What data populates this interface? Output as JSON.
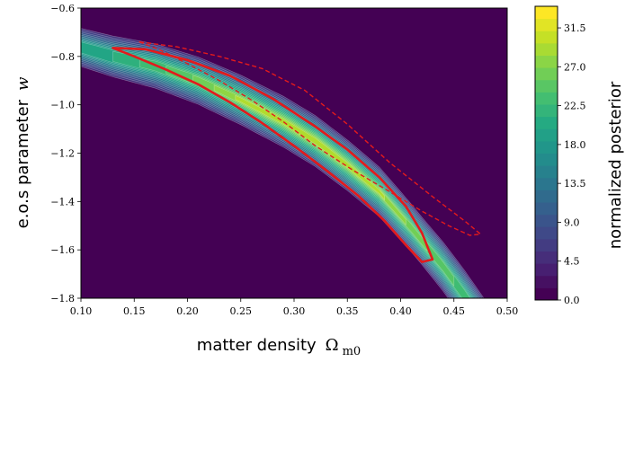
{
  "chart_data": {
    "type": "heatmap",
    "title": "",
    "xlabel_text": "matter density",
    "xlabel_symbol": "Ω",
    "xlabel_subscript": "m0",
    "ylabel_text": "e.o.s parameter",
    "ylabel_symbol": "w",
    "xlim": [
      0.1,
      0.5
    ],
    "ylim": [
      -1.8,
      -0.6
    ],
    "x_ticks": [
      "0.10",
      "0.15",
      "0.20",
      "0.25",
      "0.30",
      "0.35",
      "0.40",
      "0.45",
      "0.50"
    ],
    "y_ticks": [
      "−0.6",
      "−0.8",
      "−1.0",
      "−1.2",
      "−1.4",
      "−1.6",
      "−1.8"
    ],
    "x_tick_values": [
      0.1,
      0.15,
      0.2,
      0.25,
      0.3,
      0.35,
      0.4,
      0.45,
      0.5
    ],
    "y_tick_values": [
      -0.6,
      -0.8,
      -1.0,
      -1.2,
      -1.4,
      -1.6,
      -1.8
    ],
    "colorbar": {
      "label": "normalized posterior",
      "min": 0.0,
      "max": 34.0,
      "ticks": [
        "0.0",
        "4.5",
        "9.0",
        "13.5",
        "18.0",
        "22.5",
        "27.0",
        "31.5"
      ],
      "tick_values": [
        0.0,
        4.5,
        9.0,
        13.5,
        18.0,
        22.5,
        27.0,
        31.5
      ],
      "levels": 24
    },
    "posterior_ridge": {
      "x": [
        0.09,
        0.13,
        0.17,
        0.21,
        0.25,
        0.29,
        0.32,
        0.35,
        0.38,
        0.41,
        0.44,
        0.46,
        0.48
      ],
      "y": [
        -0.75,
        -0.8,
        -0.84,
        -0.9,
        -0.98,
        -1.07,
        -1.15,
        -1.25,
        -1.36,
        -1.51,
        -1.67,
        -1.79,
        -1.92
      ],
      "peak_x": 0.315,
      "peak_value": 34.0
    },
    "contour_solid": {
      "color": "#e41a1c",
      "style": "solid",
      "points": [
        [
          0.13,
          -0.765
        ],
        [
          0.16,
          -0.77
        ],
        [
          0.2,
          -0.815
        ],
        [
          0.24,
          -0.88
        ],
        [
          0.28,
          -0.975
        ],
        [
          0.32,
          -1.09
        ],
        [
          0.35,
          -1.185
        ],
        [
          0.38,
          -1.3
        ],
        [
          0.405,
          -1.42
        ],
        [
          0.42,
          -1.53
        ],
        [
          0.43,
          -1.64
        ],
        [
          0.42,
          -1.65
        ],
        [
          0.405,
          -1.58
        ],
        [
          0.385,
          -1.48
        ],
        [
          0.36,
          -1.375
        ],
        [
          0.33,
          -1.27
        ],
        [
          0.3,
          -1.17
        ],
        [
          0.27,
          -1.075
        ],
        [
          0.24,
          -0.99
        ],
        [
          0.21,
          -0.915
        ],
        [
          0.18,
          -0.855
        ],
        [
          0.15,
          -0.8
        ],
        [
          0.13,
          -0.765
        ]
      ]
    },
    "contour_dashed": {
      "color": "#e41a1c",
      "style": "dashed",
      "points": [
        [
          0.155,
          -0.74
        ],
        [
          0.19,
          -0.76
        ],
        [
          0.23,
          -0.8
        ],
        [
          0.27,
          -0.85
        ],
        [
          0.31,
          -0.94
        ],
        [
          0.35,
          -1.08
        ],
        [
          0.39,
          -1.24
        ],
        [
          0.43,
          -1.38
        ],
        [
          0.46,
          -1.48
        ],
        [
          0.475,
          -1.535
        ],
        [
          0.465,
          -1.54
        ],
        [
          0.445,
          -1.5
        ],
        [
          0.42,
          -1.44
        ],
        [
          0.39,
          -1.36
        ],
        [
          0.355,
          -1.27
        ],
        [
          0.32,
          -1.17
        ],
        [
          0.29,
          -1.07
        ],
        [
          0.26,
          -0.98
        ],
        [
          0.23,
          -0.9
        ],
        [
          0.2,
          -0.83
        ],
        [
          0.175,
          -0.775
        ],
        [
          0.155,
          -0.74
        ]
      ]
    },
    "colors": {
      "background": "#440154",
      "viridis": [
        "#440154",
        "#482475",
        "#414487",
        "#355f8d",
        "#2a788e",
        "#21918c",
        "#22a884",
        "#44bf70",
        "#7ad151",
        "#bddf26",
        "#fde725"
      ]
    },
    "grid": false,
    "legend": "none"
  }
}
